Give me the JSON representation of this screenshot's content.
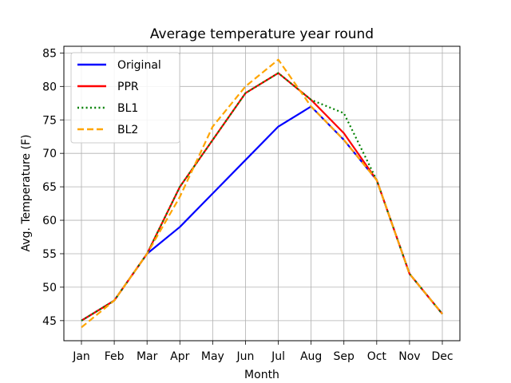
{
  "chart_data": {
    "type": "line",
    "title": "Average temperature year round",
    "xlabel": "Month",
    "ylabel": "Avg. Temperature (F)",
    "categories": [
      "Jan",
      "Feb",
      "Mar",
      "Apr",
      "May",
      "Jun",
      "Jul",
      "Aug",
      "Sep",
      "Oct",
      "Nov",
      "Dec"
    ],
    "ylim": [
      42,
      86
    ],
    "yticks": [
      45,
      50,
      55,
      60,
      65,
      70,
      75,
      80,
      85
    ],
    "grid": true,
    "legend_position": "top-left",
    "series": [
      {
        "name": "Original",
        "color": "#0000ff",
        "style": "solid",
        "values": [
          45,
          48,
          55,
          59,
          64,
          69,
          74,
          77,
          72,
          66,
          52,
          46
        ]
      },
      {
        "name": "PPR",
        "color": "#ff0000",
        "style": "solid",
        "values": [
          45,
          48,
          55,
          65,
          72,
          79,
          82,
          78,
          73,
          66,
          52,
          46
        ]
      },
      {
        "name": "BL1",
        "color": "#008000",
        "style": "dotted",
        "values": [
          45,
          48,
          55,
          65,
          72,
          79,
          82,
          78,
          76,
          66,
          52,
          46
        ]
      },
      {
        "name": "BL2",
        "color": "#ffa500",
        "style": "dashed",
        "values": [
          44,
          48,
          55,
          63.5,
          74,
          80,
          84,
          77,
          72,
          66,
          52,
          46
        ]
      }
    ]
  }
}
